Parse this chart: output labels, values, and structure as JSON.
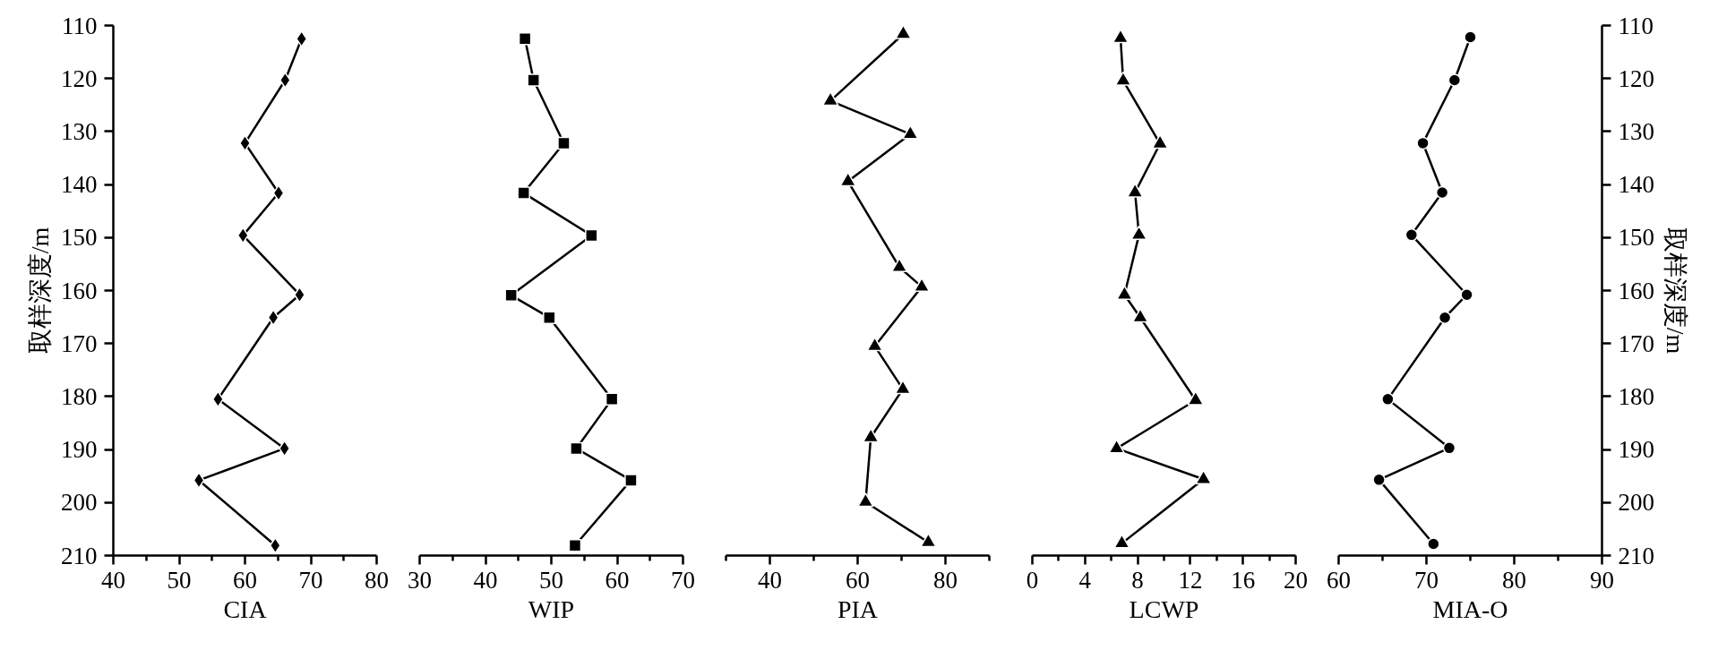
{
  "chart_data": [
    {
      "type": "line",
      "xlabel": "CIA",
      "ylabel": "取样深度/m",
      "marker": "diamond",
      "xlim": [
        40,
        80
      ],
      "xticks": [
        40,
        {
          "value": 45,
          "label": null
        },
        50,
        {
          "value": 55,
          "label": null
        },
        60,
        {
          "value": 65,
          "label": null
        },
        70,
        {
          "value": 75,
          "label": null
        },
        80
      ],
      "ylim": [
        210,
        110
      ],
      "yticks": [
        110,
        120,
        130,
        140,
        150,
        160,
        170,
        180,
        190,
        200,
        210
      ],
      "series": [
        {
          "color": "#000000",
          "x": [
            68.6,
            66.1,
            60,
            65.1,
            59.7,
            68.3,
            64.3,
            55.9,
            66,
            53,
            64.6
          ],
          "values": [
            112.5,
            120.3,
            132.2,
            141.6,
            149.6,
            160.8,
            165.1,
            180.5,
            189.8,
            195.8,
            208.1
          ]
        }
      ]
    },
    {
      "type": "line",
      "xlabel": "WIP",
      "marker": "square",
      "tick_labels": "x",
      "xlim": [
        30,
        70
      ],
      "xticks": [
        30,
        {
          "value": 35,
          "label": null
        },
        40,
        {
          "value": 45,
          "label": null
        },
        50,
        {
          "value": 55,
          "label": null
        },
        60,
        {
          "value": 65,
          "label": null
        },
        70
      ],
      "ylim": [
        210,
        110
      ],
      "series": [
        {
          "color": "#000000",
          "x": [
            46,
            47.3,
            51.9,
            45.8,
            56.1,
            43.9,
            49.7,
            59.2,
            53.8,
            62.1,
            53.6
          ],
          "values": [
            112.5,
            120.3,
            132.2,
            141.6,
            149.6,
            160.9,
            165.1,
            180.5,
            189.8,
            195.8,
            208.1
          ]
        }
      ]
    },
    {
      "type": "line",
      "xlabel": "PIA",
      "marker": "triangle",
      "tick_labels": "x",
      "xlim": [
        30,
        90
      ],
      "xticks": [
        {
          "value": 30,
          "label": null
        },
        40,
        {
          "value": 50,
          "label": null
        },
        60,
        {
          "value": 70,
          "label": null
        },
        80,
        {
          "value": 90,
          "label": null
        }
      ],
      "ylim": [
        210,
        110
      ],
      "series": [
        {
          "color": "#000000",
          "x": [
            70.4,
            53.8,
            72,
            57.8,
            69.5,
            74.6,
            63.9,
            70.3,
            63,
            61.8,
            76.1
          ],
          "values": [
            111.6,
            124.2,
            130.5,
            139.4,
            155.6,
            159.3,
            170.5,
            178.6,
            187.7,
            199.9,
            207.5
          ]
        }
      ]
    },
    {
      "type": "line",
      "xlabel": "LCWP",
      "marker": "triangle",
      "tick_labels": "x",
      "xlim": [
        0,
        20
      ],
      "xticks": [
        0,
        {
          "value": 2,
          "label": null
        },
        4,
        {
          "value": 6,
          "label": null
        },
        8,
        {
          "value": 10,
          "label": null
        },
        12,
        {
          "value": 14,
          "label": null
        },
        16,
        {
          "value": 18,
          "label": null
        },
        20
      ],
      "ylim": [
        210,
        110
      ],
      "series": [
        {
          "color": "#000000",
          "x": [
            6.7,
            6.9,
            9.7,
            7.8,
            8.1,
            7,
            8.2,
            12.4,
            6.4,
            13,
            6.8
          ],
          "values": [
            112.4,
            120.4,
            132.3,
            141.5,
            149.5,
            160.8,
            165.1,
            180.7,
            189.8,
            195.6,
            207.7
          ]
        }
      ]
    },
    {
      "type": "line",
      "xlabel": "MIA-O",
      "y2label": "取样深度/m",
      "marker": "circle",
      "xlim": [
        60,
        90
      ],
      "xticks": [
        60,
        {
          "value": 65,
          "label": null
        },
        70,
        {
          "value": 75,
          "label": null
        },
        80,
        {
          "value": 85,
          "label": null
        },
        90
      ],
      "y2lim": [
        210,
        110
      ],
      "y2ticks": [
        110,
        120,
        130,
        140,
        150,
        160,
        170,
        180,
        190,
        200,
        210
      ],
      "series": [
        {
          "color": "#000000",
          "axis": "y2",
          "x": [
            75,
            73.2,
            69.6,
            71.8,
            68.3,
            74.6,
            72.1,
            65.6,
            72.6,
            64.6,
            70.8
          ],
          "values": [
            112.2,
            120.3,
            132.2,
            141.5,
            149.5,
            160.8,
            165.1,
            180.5,
            189.7,
            195.7,
            207.8
          ]
        }
      ]
    }
  ]
}
